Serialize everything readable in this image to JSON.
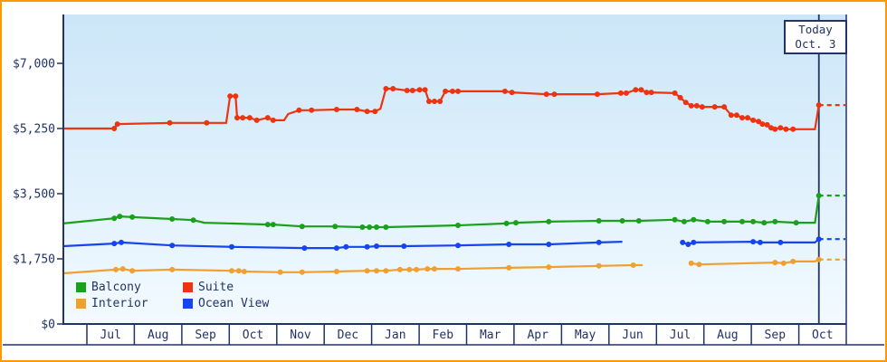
{
  "colors": {
    "frame_border": "#ff9900",
    "axis": "#223366",
    "text": "#223366",
    "today_line": "#223366",
    "plot_bg_top": "#cbe6f8",
    "plot_bg_bottom": "#f2faff"
  },
  "legend": [
    {
      "label": "Balcony",
      "color": "#1ba01b"
    },
    {
      "label": "Suite",
      "color": "#ee3311"
    },
    {
      "label": "Interior",
      "color": "#f0a030"
    },
    {
      "label": "Ocean View",
      "color": "#1544f0"
    }
  ],
  "chart_data": {
    "type": "line",
    "today": {
      "label": "Today",
      "date": "Oct. 3",
      "x_fraction": 0.965
    },
    "y_axis": {
      "min": 0,
      "max": 7000,
      "tick_step": 1750,
      "ticks": [
        {
          "value": 0,
          "label": "$0"
        },
        {
          "value": 1750,
          "label": "$1,750"
        },
        {
          "value": 3500,
          "label": "$3,500"
        },
        {
          "value": 5250,
          "label": "$5,250"
        },
        {
          "value": 7000,
          "label": "$7,000"
        }
      ]
    },
    "x_axis": {
      "months": [
        "Jul",
        "Aug",
        "Sep",
        "Oct",
        "Nov",
        "Dec",
        "Jan",
        "Feb",
        "Mar",
        "Apr",
        "May",
        "Jun",
        "Jul",
        "Aug",
        "Sep",
        "Oct"
      ]
    },
    "series": [
      {
        "id": "interior",
        "name": "Interior",
        "color": "#f0a030",
        "forecast": 1730,
        "points": [
          [
            0.0,
            1360,
            0
          ],
          [
            0.067,
            1460
          ],
          [
            0.076,
            1480
          ],
          [
            0.088,
            1430
          ],
          [
            0.139,
            1460
          ],
          [
            0.215,
            1430
          ],
          [
            0.224,
            1430
          ],
          [
            0.231,
            1410
          ],
          [
            0.277,
            1390
          ],
          [
            0.305,
            1390
          ],
          [
            0.349,
            1410
          ],
          [
            0.388,
            1430
          ],
          [
            0.4,
            1430
          ],
          [
            0.412,
            1430
          ],
          [
            0.43,
            1460
          ],
          [
            0.442,
            1460
          ],
          [
            0.451,
            1460
          ],
          [
            0.465,
            1480
          ],
          [
            0.474,
            1480
          ],
          [
            0.504,
            1480
          ],
          [
            0.569,
            1510
          ],
          [
            0.62,
            1530
          ],
          [
            0.684,
            1560
          ],
          [
            0.728,
            1580
          ],
          [
            0.74,
            1580,
            0
          ],
          null,
          [
            0.802,
            1630
          ],
          [
            0.812,
            1600
          ],
          [
            0.909,
            1650
          ],
          [
            0.92,
            1630
          ],
          [
            0.932,
            1680
          ],
          [
            0.96,
            1680,
            0
          ],
          [
            0.965,
            1730
          ]
        ]
      },
      {
        "id": "ocean-view",
        "name": "Ocean View",
        "color": "#1544f0",
        "forecast": 2280,
        "points": [
          [
            0.0,
            2090,
            0
          ],
          [
            0.065,
            2160
          ],
          [
            0.074,
            2190
          ],
          [
            0.139,
            2110
          ],
          [
            0.215,
            2070
          ],
          [
            0.308,
            2040
          ],
          [
            0.349,
            2040
          ],
          [
            0.361,
            2070
          ],
          [
            0.388,
            2070
          ],
          [
            0.4,
            2090
          ],
          [
            0.435,
            2090
          ],
          [
            0.504,
            2110
          ],
          [
            0.569,
            2140
          ],
          [
            0.62,
            2140
          ],
          [
            0.684,
            2190
          ],
          [
            0.714,
            2210,
            0
          ],
          null,
          [
            0.791,
            2190
          ],
          [
            0.798,
            2140
          ],
          [
            0.805,
            2190
          ],
          [
            0.881,
            2210
          ],
          [
            0.89,
            2190
          ],
          [
            0.916,
            2190
          ],
          [
            0.96,
            2190,
            0
          ],
          [
            0.965,
            2280
          ]
        ]
      },
      {
        "id": "balcony",
        "name": "Balcony",
        "color": "#1ba01b",
        "forecast": 3450,
        "points": [
          [
            0.0,
            2700,
            0
          ],
          [
            0.065,
            2840
          ],
          [
            0.072,
            2890
          ],
          [
            0.088,
            2870
          ],
          [
            0.139,
            2820
          ],
          [
            0.166,
            2790
          ],
          [
            0.18,
            2720,
            0
          ],
          [
            0.261,
            2670
          ],
          [
            0.268,
            2670
          ],
          [
            0.305,
            2620
          ],
          [
            0.347,
            2620
          ],
          [
            0.382,
            2600
          ],
          [
            0.391,
            2600
          ],
          [
            0.4,
            2600
          ],
          [
            0.412,
            2600
          ],
          [
            0.504,
            2650
          ],
          [
            0.566,
            2700
          ],
          [
            0.578,
            2720
          ],
          [
            0.62,
            2750
          ],
          [
            0.684,
            2770
          ],
          [
            0.714,
            2770
          ],
          [
            0.735,
            2770
          ],
          [
            0.781,
            2800
          ],
          [
            0.793,
            2750
          ],
          [
            0.805,
            2800
          ],
          [
            0.823,
            2750
          ],
          [
            0.844,
            2750
          ],
          [
            0.867,
            2750
          ],
          [
            0.881,
            2750
          ],
          [
            0.895,
            2720
          ],
          [
            0.909,
            2750
          ],
          [
            0.936,
            2720
          ],
          [
            0.96,
            2720,
            0
          ],
          [
            0.965,
            3450
          ]
        ]
      },
      {
        "id": "suite",
        "name": "Suite",
        "color": "#ee3311",
        "forecast": 5880,
        "points": [
          [
            0.0,
            5250,
            0
          ],
          [
            0.065,
            5250
          ],
          [
            0.069,
            5370
          ],
          [
            0.136,
            5400
          ],
          [
            0.183,
            5400
          ],
          [
            0.208,
            5400,
            0
          ],
          [
            0.213,
            6120
          ],
          [
            0.22,
            6120
          ],
          [
            0.222,
            5540
          ],
          [
            0.229,
            5540
          ],
          [
            0.238,
            5540
          ],
          [
            0.247,
            5470
          ],
          [
            0.261,
            5540
          ],
          [
            0.268,
            5470
          ],
          [
            0.282,
            5470,
            0
          ],
          [
            0.287,
            5640,
            0
          ],
          [
            0.301,
            5740
          ],
          [
            0.317,
            5740
          ],
          [
            0.349,
            5760
          ],
          [
            0.375,
            5760
          ],
          [
            0.388,
            5710
          ],
          [
            0.398,
            5710
          ],
          [
            0.405,
            5780,
            0
          ],
          [
            0.412,
            6320
          ],
          [
            0.421,
            6320
          ],
          [
            0.439,
            6270
          ],
          [
            0.446,
            6270
          ],
          [
            0.455,
            6290
          ],
          [
            0.462,
            6290
          ],
          [
            0.467,
            5980
          ],
          [
            0.474,
            5980
          ],
          [
            0.481,
            5980
          ],
          [
            0.488,
            6250
          ],
          [
            0.497,
            6250
          ],
          [
            0.504,
            6250
          ],
          [
            0.564,
            6250
          ],
          [
            0.573,
            6220
          ],
          [
            0.617,
            6170
          ],
          [
            0.627,
            6170
          ],
          [
            0.682,
            6170
          ],
          [
            0.712,
            6200
          ],
          [
            0.719,
            6200
          ],
          [
            0.731,
            6290
          ],
          [
            0.738,
            6290
          ],
          [
            0.745,
            6220
          ],
          [
            0.751,
            6220
          ],
          [
            0.781,
            6200
          ],
          [
            0.788,
            6080
          ],
          [
            0.795,
            5950
          ],
          [
            0.802,
            5860
          ],
          [
            0.809,
            5860
          ],
          [
            0.816,
            5830
          ],
          [
            0.832,
            5830
          ],
          [
            0.844,
            5830
          ],
          [
            0.853,
            5610
          ],
          [
            0.86,
            5610
          ],
          [
            0.867,
            5540
          ],
          [
            0.874,
            5540
          ],
          [
            0.881,
            5470
          ],
          [
            0.888,
            5440
          ],
          [
            0.893,
            5370
          ],
          [
            0.899,
            5350
          ],
          [
            0.904,
            5270
          ],
          [
            0.909,
            5230
          ],
          [
            0.916,
            5270
          ],
          [
            0.923,
            5230
          ],
          [
            0.932,
            5230
          ],
          [
            0.96,
            5230,
            0
          ],
          [
            0.965,
            5880
          ]
        ]
      }
    ]
  }
}
